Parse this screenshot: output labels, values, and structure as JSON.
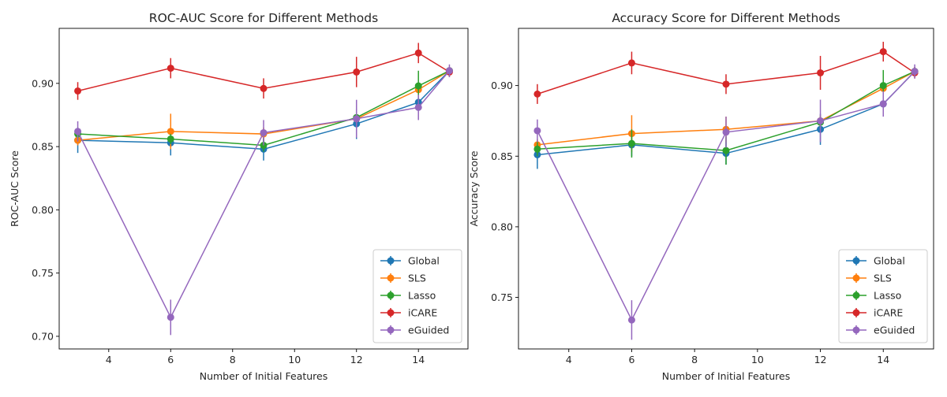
{
  "chart_data": [
    {
      "type": "line",
      "title": "ROC-AUC Score for Different Methods",
      "xlabel": "Number of Initial Features",
      "ylabel": "ROC-AUC Score",
      "x": [
        3,
        6,
        9,
        12,
        14,
        15
      ],
      "xlim": [
        2.4,
        15.6
      ],
      "ylim": [
        0.69,
        0.9435
      ],
      "xticks": [
        4,
        6,
        8,
        10,
        12,
        14
      ],
      "yticks": [
        0.7,
        0.75,
        0.8,
        0.85,
        0.9
      ],
      "xtick_labels": [
        "4",
        "6",
        "8",
        "10",
        "12",
        "14"
      ],
      "ytick_labels": [
        "0.70",
        "0.75",
        "0.80",
        "0.85",
        "0.90"
      ],
      "legend": "bottom-right",
      "grid": false,
      "series": [
        {
          "name": "Global",
          "color": "#1f77b4",
          "values": [
            0.855,
            0.853,
            0.848,
            0.868,
            0.885,
            0.91
          ],
          "errors": [
            0.01,
            0.01,
            0.009,
            0.012,
            0.004,
            0.003
          ]
        },
        {
          "name": "SLS",
          "color": "#ff7f0e",
          "values": [
            0.855,
            0.862,
            0.86,
            0.872,
            0.895,
            0.91
          ],
          "errors": [
            0.004,
            0.014,
            0.005,
            0.004,
            0.005,
            0.003
          ]
        },
        {
          "name": "Lasso",
          "color": "#2ca02c",
          "values": [
            0.86,
            0.856,
            0.851,
            0.873,
            0.898,
            0.91
          ],
          "errors": [
            0.005,
            0.004,
            0.005,
            0.004,
            0.012,
            0.003
          ]
        },
        {
          "name": "iCARE",
          "color": "#d62728",
          "values": [
            0.894,
            0.912,
            0.896,
            0.909,
            0.924,
            0.909
          ],
          "errors": [
            0.007,
            0.008,
            0.008,
            0.012,
            0.008,
            0.004
          ]
        },
        {
          "name": "eGuided",
          "color": "#9467bd",
          "values": [
            0.862,
            0.715,
            0.861,
            0.872,
            0.881,
            0.91
          ],
          "errors": [
            0.008,
            0.014,
            0.01,
            0.015,
            0.01,
            0.005
          ]
        }
      ]
    },
    {
      "type": "line",
      "title": "Accuracy Score for Different Methods",
      "xlabel": "Number of Initial Features",
      "ylabel": "Accuracy Score",
      "x": [
        3,
        6,
        9,
        12,
        14,
        15
      ],
      "xlim": [
        2.4,
        15.6
      ],
      "ylim": [
        0.7135,
        0.9405
      ],
      "xticks": [
        4,
        6,
        8,
        10,
        12,
        14
      ],
      "yticks": [
        0.75,
        0.8,
        0.85,
        0.9
      ],
      "xtick_labels": [
        "4",
        "6",
        "8",
        "10",
        "12",
        "14"
      ],
      "ytick_labels": [
        "0.75",
        "0.80",
        "0.85",
        "0.90"
      ],
      "legend": "bottom-right",
      "grid": false,
      "series": [
        {
          "name": "Global",
          "color": "#1f77b4",
          "values": [
            0.851,
            0.858,
            0.852,
            0.869,
            0.887,
            0.91
          ],
          "errors": [
            0.01,
            0.008,
            0.008,
            0.011,
            0.004,
            0.003
          ]
        },
        {
          "name": "SLS",
          "color": "#ff7f0e",
          "values": [
            0.858,
            0.866,
            0.869,
            0.875,
            0.898,
            0.91
          ],
          "errors": [
            0.004,
            0.013,
            0.009,
            0.004,
            0.005,
            0.003
          ]
        },
        {
          "name": "Lasso",
          "color": "#2ca02c",
          "values": [
            0.855,
            0.859,
            0.854,
            0.874,
            0.9,
            0.91
          ],
          "errors": [
            0.005,
            0.01,
            0.01,
            0.004,
            0.011,
            0.003
          ]
        },
        {
          "name": "iCARE",
          "color": "#d62728",
          "values": [
            0.894,
            0.916,
            0.901,
            0.909,
            0.924,
            0.909
          ],
          "errors": [
            0.007,
            0.008,
            0.007,
            0.012,
            0.007,
            0.004
          ]
        },
        {
          "name": "eGuided",
          "color": "#9467bd",
          "values": [
            0.868,
            0.734,
            0.867,
            0.875,
            0.887,
            0.91
          ],
          "errors": [
            0.008,
            0.014,
            0.011,
            0.015,
            0.009,
            0.005
          ]
        }
      ]
    }
  ]
}
